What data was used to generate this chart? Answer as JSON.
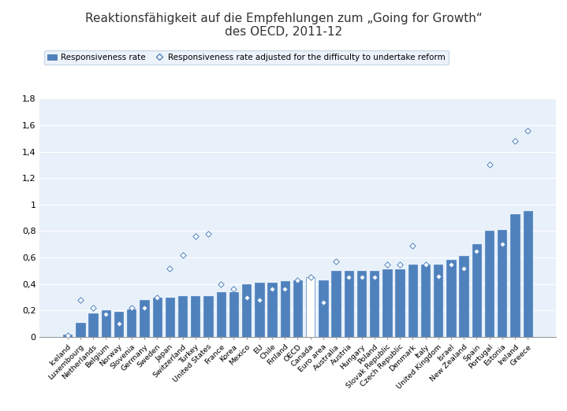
{
  "title": "Reaktionsfähigkeit auf die Empfehlungen zum „Going for Growth“\ndes OECD, 2011-12",
  "legend_bar": "Responsiveness rate",
  "legend_diamond": "Responsiveness rate adjusted for the difficulty to undertake reform",
  "categories": [
    "Iceland",
    "Luxembourg",
    "Netherlands",
    "Belgium",
    "Norway",
    "Slovenia",
    "Germany",
    "Sweden",
    "Japan",
    "Switzerland",
    "Turkey",
    "United States",
    "France",
    "Korea",
    "Mexico",
    "EU",
    "Chile",
    "Finland",
    "OECD",
    "Canada",
    "Euro area",
    "Australia",
    "Austria",
    "Hungary",
    "Poland",
    "Slovak Republic",
    "Czech Republic",
    "Denmark",
    "Italy",
    "United Kingdom",
    "Israel",
    "New Zealand",
    "Spain",
    "Portugal",
    "Estonia",
    "Ireland",
    "Greece"
  ],
  "bar_values": [
    0.02,
    0.11,
    0.18,
    0.2,
    0.19,
    0.21,
    0.28,
    0.3,
    0.3,
    0.31,
    0.31,
    0.31,
    0.34,
    0.34,
    0.4,
    0.41,
    0.41,
    0.42,
    0.43,
    0.45,
    0.43,
    0.5,
    0.5,
    0.5,
    0.5,
    0.51,
    0.51,
    0.55,
    0.55,
    0.55,
    0.58,
    0.61,
    0.7,
    0.8,
    0.81,
    0.93,
    0.95
  ],
  "diamond_values": [
    0.01,
    0.28,
    0.22,
    0.17,
    0.1,
    0.22,
    0.22,
    0.3,
    0.52,
    0.62,
    0.76,
    0.78,
    0.4,
    0.36,
    0.3,
    0.28,
    0.36,
    0.36,
    0.43,
    0.45,
    0.26,
    0.57,
    0.45,
    0.45,
    0.45,
    0.55,
    0.55,
    0.69,
    0.55,
    0.46,
    0.55,
    0.52,
    0.65,
    1.3,
    0.7,
    1.48,
    1.56
  ],
  "special_white_bar_index": 19,
  "bar_color": "#4F81BD",
  "bar_color_special": "#FFFFFF",
  "bar_edge_color": "#4F81BD",
  "background_color": "#E8F1FA",
  "ylim": [
    0,
    1.8
  ],
  "yticks": [
    0,
    0.2,
    0.4,
    0.6,
    0.8,
    1.0,
    1.2,
    1.4,
    1.6,
    1.8
  ],
  "ytick_labels": [
    "0",
    "0,2",
    "0,4",
    "0,6",
    "0,8",
    "1",
    "1,2",
    "1,4",
    "1,6",
    "1,8"
  ],
  "title_fontsize": 11,
  "legend_fontsize": 7.5
}
